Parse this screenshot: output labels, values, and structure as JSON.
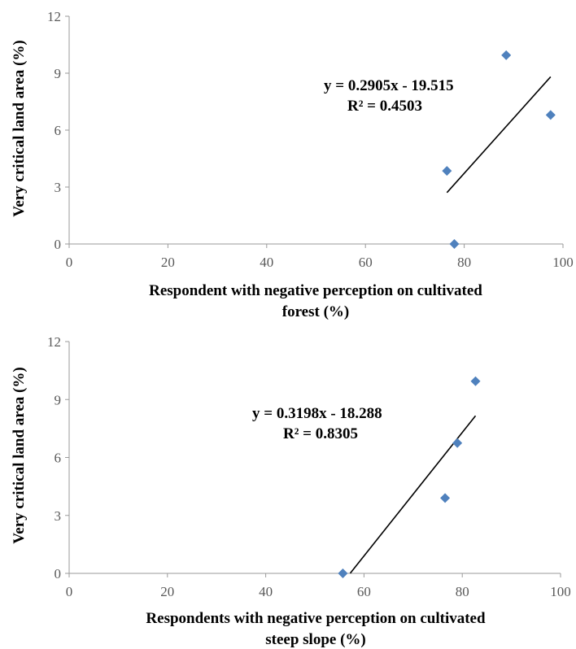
{
  "chart_data": [
    {
      "type": "scatter",
      "title": "",
      "xlabel": [
        "Respondent with negative perception on cultivated",
        "forest (%)"
      ],
      "ylabel": "Very critical land area (%)",
      "xlim": [
        0,
        100
      ],
      "ylim": [
        0,
        12
      ],
      "x_ticks": [
        "0",
        "20",
        "40",
        "60",
        "80",
        "100"
      ],
      "y_ticks": [
        "0",
        "3",
        "6",
        "9",
        "12"
      ],
      "grid": false,
      "marker_color": "#4f81bd",
      "trendline_color": "#000000",
      "series": [
        {
          "x": [
            76.5,
            78,
            88.5,
            97.5
          ],
          "y": [
            3.85,
            0,
            9.95,
            6.8
          ]
        }
      ],
      "trendline": {
        "slope": 0.2905,
        "intercept": -19.515,
        "x_range": [
          76.5,
          97.5
        ]
      },
      "annotations": [
        "y = 0.2905x - 19.515",
        "R² = 0.4503"
      ]
    },
    {
      "type": "scatter",
      "title": "",
      "xlabel": [
        "Respondents with negative perception on cultivated",
        "steep slope (%)"
      ],
      "ylabel": "Very critical land area (%)",
      "xlim": [
        0,
        100
      ],
      "ylim": [
        0,
        12
      ],
      "x_ticks": [
        "0",
        "20",
        "40",
        "60",
        "80",
        "100"
      ],
      "y_ticks": [
        "0",
        "3",
        "6",
        "9",
        "12"
      ],
      "grid": false,
      "marker_color": "#4f81bd",
      "trendline_color": "#000000",
      "series": [
        {
          "x": [
            55.7,
            76.5,
            79,
            82.7
          ],
          "y": [
            0,
            3.9,
            6.75,
            9.95
          ]
        }
      ],
      "trendline": {
        "slope": 0.3198,
        "intercept": -18.288,
        "x_range": [
          57.2,
          82.7
        ]
      },
      "annotations": [
        "y = 0.3198x - 18.288",
        "R² = 0.8305"
      ]
    }
  ]
}
